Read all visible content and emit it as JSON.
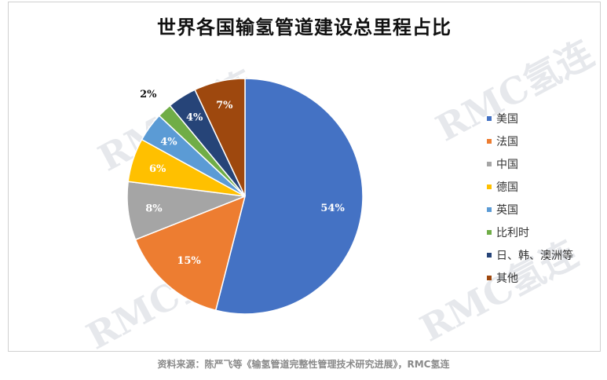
{
  "chart_data": {
    "type": "pie",
    "title": "世界各国输氢管道建设总里程占比",
    "slices": [
      {
        "label": "美国",
        "value": 54,
        "display": "54%",
        "color": "#4472C4"
      },
      {
        "label": "法国",
        "value": 15,
        "display": "15%",
        "color": "#ED7D31"
      },
      {
        "label": "中国",
        "value": 8,
        "display": "8%",
        "color": "#A5A5A5"
      },
      {
        "label": "德国",
        "value": 6,
        "display": "6%",
        "color": "#FFC000"
      },
      {
        "label": "英国",
        "value": 4,
        "display": "4%",
        "color": "#5B9BD5"
      },
      {
        "label": "比利时",
        "value": 2,
        "display": "2%",
        "color": "#70AD47"
      },
      {
        "label": "日、韩、澳洲等",
        "value": 4,
        "display": "4%",
        "color": "#264478"
      },
      {
        "label": "其他",
        "value": 7,
        "display": "7%",
        "color": "#9E480E"
      }
    ],
    "legend_position": "right"
  },
  "watermark": "RMC氢连",
  "source": "资料来源：陈严飞等《输氢管道完整性管理技术研究进展》，RMC氢连"
}
